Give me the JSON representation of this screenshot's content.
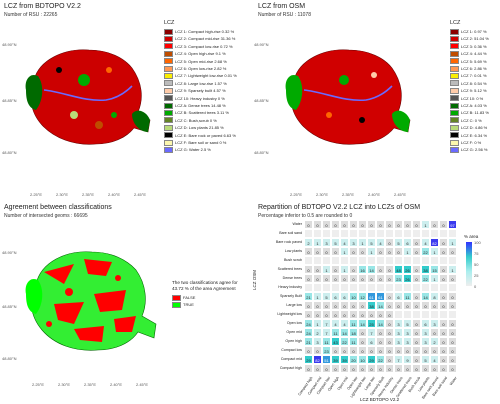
{
  "panel_tl": {
    "title": "LCZ from   BDTOPO V2.2",
    "subtitle": "Number of RSU : 22265",
    "legend_title": "LCZ",
    "legend": [
      {
        "label": "LCZ 1: Compact high-rise 0.32 %",
        "color": "#8b0000"
      },
      {
        "label": "LCZ 2: Compact mid-rise 31.36 %",
        "color": "#d00000"
      },
      {
        "label": "LCZ 3: Compact low-rise 0.72 %",
        "color": "#ff0000"
      },
      {
        "label": "LCZ 4: Open high-rise 9.1 %",
        "color": "#bf4d00"
      },
      {
        "label": "LCZ 5: Open mid-rise 2.68 %",
        "color": "#ff6600"
      },
      {
        "label": "LCZ 6: Open low-rise 2.82 %",
        "color": "#ff9955"
      },
      {
        "label": "LCZ 7: Lightweight low-rise 0.01 %",
        "color": "#faee05"
      },
      {
        "label": "LCZ 8: Large low-rise 1.57 %",
        "color": "#bcbcbc"
      },
      {
        "label": "LCZ 9: Sparsely built 4.57 %",
        "color": "#ffccaa"
      },
      {
        "label": "LCZ 10: Heavy industry 0 %",
        "color": "#555555"
      },
      {
        "label": "LCZ A: Dense trees 14.48 %",
        "color": "#006a00"
      },
      {
        "label": "LCZ B: Scattered trees 3.11 %",
        "color": "#00aa00"
      },
      {
        "label": "LCZ C: Bush,scrub 0 %",
        "color": "#648525"
      },
      {
        "label": "LCZ D: Low plants 21.85 %",
        "color": "#b9db79"
      },
      {
        "label": "LCZ E: Bare rock or paved 6.63 %",
        "color": "#000000"
      },
      {
        "label": "LCZ F: Bare soil or sand 0 %",
        "color": "#fbf7ae"
      },
      {
        "label": "LCZ G: Water 2.5 %",
        "color": "#6a6aff"
      }
    ],
    "xticks": [
      "2.25°E",
      "2.30°E",
      "2.35°E",
      "2.40°E",
      "2.45°E"
    ],
    "yticks": [
      "48.90°N",
      "48.85°N",
      "48.80°N"
    ]
  },
  "panel_tr": {
    "title": "LCZ from   OSM",
    "subtitle": "Number of RSU : 11078",
    "legend_title": "LCZ",
    "legend": [
      {
        "label": "LCZ 1: 0.97 %",
        "color": "#8b0000"
      },
      {
        "label": "LCZ 2: 51.04 %",
        "color": "#d00000"
      },
      {
        "label": "LCZ 3: 0.36 %",
        "color": "#ff0000"
      },
      {
        "label": "LCZ 4: 4.44 %",
        "color": "#bf4d00"
      },
      {
        "label": "LCZ 5: 5.69 %",
        "color": "#ff6600"
      },
      {
        "label": "LCZ 6: 2.86 %",
        "color": "#ff9955"
      },
      {
        "label": "LCZ 7: 0.01 %",
        "color": "#faee05"
      },
      {
        "label": "LCZ 8: 0.54 %",
        "color": "#bcbcbc"
      },
      {
        "label": "LCZ 9: 5.12 %",
        "color": "#ffccaa"
      },
      {
        "label": "LCZ 10: 0 %",
        "color": "#555555"
      },
      {
        "label": "LCZ A: 4.03 %",
        "color": "#006a00"
      },
      {
        "label": "LCZ B: 11.83 %",
        "color": "#00aa00"
      },
      {
        "label": "LCZ C: 0 %",
        "color": "#648525"
      },
      {
        "label": "LCZ D: 4.86 %",
        "color": "#b9db79"
      },
      {
        "label": "LCZ E: 6.34 %",
        "color": "#000000"
      },
      {
        "label": "LCZ F: 0 %",
        "color": "#fbf7ae"
      },
      {
        "label": "LCZ G: 2.56 %",
        "color": "#6a6aff"
      }
    ],
    "xticks": [
      "2.25°E",
      "2.30°E",
      "2.35°E",
      "2.40°E",
      "2.45°E"
    ],
    "yticks": [
      "48.90°N",
      "48.85°N",
      "48.80°N"
    ]
  },
  "panel_bl": {
    "title": "Agreement between classifications",
    "subtitle": "Number of intersected geoms : 66695",
    "agree_text": "The two classifications agree for 43.72 % of the area Agreement",
    "legend": [
      {
        "label": "FALSE",
        "color": "#ff0000"
      },
      {
        "label": "TRUE",
        "color": "#00ff00"
      }
    ],
    "xticks": [
      "2.25°E",
      "2.30°E",
      "2.35°E",
      "2.40°E",
      "2.45°E"
    ],
    "yticks": [
      "48.90°N",
      "48.85°N",
      "48.80°N"
    ]
  },
  "panel_br": {
    "title": "Repartition of   BDTOPO V2.2   LCZ into LCZs of   OSM",
    "subtitle": "Percentage inferior to 0.5 are rounded to 0",
    "ylabel": "LCZ   OSM",
    "xlabel": "LCZ   BDTOPO V2.2",
    "colorbar_title": "% area",
    "colorbar_ticks": [
      "100",
      "75",
      "50",
      "25",
      "0"
    ],
    "rows": [
      "Water",
      "Bare soil sand",
      "Bare rock paved",
      "Low plants",
      "Bush scrub",
      "Scattered trees",
      "Dense trees",
      "Heavy industry",
      "Sparsely Built",
      "Large low",
      "Lightweight low",
      "Open low",
      "Open mid",
      "Open high",
      "Compact low",
      "Compact mid",
      "Compact high"
    ],
    "cols": [
      "Compact high",
      "Compact mid",
      "Compact low",
      "Open high",
      "Open mid",
      "Open low",
      "Lightweight low",
      "Large low",
      "Sparsely Built",
      "Heavy industry",
      "Dense trees",
      "Scattered trees",
      "Bush scrub",
      "Low plants",
      "Bare rock paved",
      "Bare soil sand",
      "Water"
    ],
    "matrix": [
      [
        "0",
        "0",
        "0",
        "0",
        "0",
        "0",
        "0",
        "0",
        "0",
        "0",
        "0",
        "0",
        "0",
        "1",
        "0",
        "0",
        "97"
      ],
      [
        "",
        "",
        "",
        "",
        "",
        "",
        "",
        "",
        "",
        "",
        "",
        "",
        "",
        "",
        "",
        "",
        ""
      ],
      [
        "2",
        "1",
        "3",
        "5",
        "4",
        "3",
        "1",
        "5",
        "4",
        "0",
        "5",
        "6",
        "0",
        "4",
        "82",
        "0",
        "1"
      ],
      [
        "0",
        "0",
        "0",
        "0",
        "1",
        "0",
        "0",
        "1",
        "0",
        "0",
        "0",
        "1",
        "0",
        "22",
        "1",
        "0",
        "0"
      ],
      [
        "",
        "",
        "",
        "",
        "",
        "",
        "",
        "",
        "",
        "",
        "",
        "",
        "",
        "",
        "",
        "",
        ""
      ],
      [
        "0",
        "0",
        "1",
        "0",
        "1",
        "0",
        "16",
        "14",
        "0",
        "0",
        "48",
        "26",
        "0",
        "38",
        "15",
        "0",
        "1"
      ],
      [
        "0",
        "0",
        "0",
        "0",
        "0",
        "0",
        "0",
        "0",
        "0",
        "0",
        "23",
        "26",
        "0",
        "22",
        "1",
        "0",
        "0"
      ],
      [
        "",
        "",
        "",
        "",
        "",
        "",
        "",
        "",
        "",
        "",
        "",
        "",
        "",
        "",
        "",
        "",
        ""
      ],
      [
        "21",
        "1",
        "5",
        "6",
        "6",
        "10",
        "12",
        "61",
        "61",
        "0",
        "6",
        "11",
        "0",
        "14",
        "8",
        "0",
        "0"
      ],
      [
        "0",
        "0",
        "0",
        "0",
        "0",
        "0",
        "0",
        "38",
        "14",
        "0",
        "0",
        "0",
        "0",
        "0",
        "0",
        "0",
        "0"
      ],
      [
        "0",
        "0",
        "0",
        "0",
        "0",
        "0",
        "0",
        "0",
        "0",
        "0",
        "",
        "",
        "",
        "",
        "",
        "",
        ""
      ],
      [
        "24",
        "1",
        "7",
        "4",
        "4",
        "11",
        "14",
        "25",
        "14",
        "0",
        "3",
        "5",
        "0",
        "6",
        "3",
        "0",
        "0"
      ],
      [
        "24",
        "2",
        "7",
        "11",
        "14",
        "18",
        "0",
        "7",
        "0",
        "0",
        "3",
        "3",
        "0",
        "3",
        "0",
        "0",
        "0"
      ],
      [
        "21",
        "3",
        "11",
        "43",
        "22",
        "11",
        "0",
        "6",
        "0",
        "0",
        "3",
        "3",
        "0",
        "3",
        "2",
        "0",
        "0"
      ],
      [
        "0",
        "0",
        "23",
        "0",
        "0",
        "0",
        "0",
        "0",
        "0",
        "0",
        "0",
        "0",
        "0",
        "0",
        "0",
        "0",
        "0"
      ],
      [
        "29",
        "82",
        "51",
        "39",
        "39",
        "20",
        "10",
        "29",
        "22",
        "0",
        "7",
        "9",
        "0",
        "5",
        "4",
        "0",
        "0"
      ],
      [
        "0",
        "0",
        "0",
        "0",
        "0",
        "0",
        "0",
        "0",
        "0",
        "0",
        "0",
        "0",
        "0",
        "0",
        "0",
        "0",
        "0"
      ]
    ]
  }
}
